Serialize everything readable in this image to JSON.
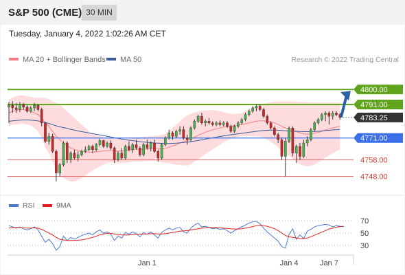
{
  "header": {
    "instrument": "S&P 500 (CME)",
    "timeframe": "30 MIN"
  },
  "timestamp": "Tuesday, January 4, 2022 1:02:26 AM CET",
  "legend": {
    "ma20": "MA 20 + Bollinger Bands",
    "ma50": "MA 50",
    "copyright": "Research © 2022 Trading Central",
    "rsi": "RSI",
    "rsi_ma": "9MA",
    "colors": {
      "ma20": "#f08080",
      "ma50": "#3a5a9a",
      "rsi": "#4a78d0",
      "rsi_ma": "#e02020"
    }
  },
  "chart_data": [
    {
      "type": "candlestick",
      "ylim": [
        4738,
        4805
      ],
      "x_ticks": [
        {
          "label": "Jan 1",
          "index": 38
        },
        {
          "label": "Jan 4",
          "index": 77
        },
        {
          "label": "Jan 7",
          "index": 88
        }
      ],
      "levels": [
        {
          "value": 4800.0,
          "label": "4800.00",
          "style": "resistance",
          "color": "#5fa41c"
        },
        {
          "value": 4791.0,
          "label": "4791.00",
          "style": "resistance",
          "color": "#5fa41c"
        },
        {
          "value": 4783.25,
          "label": "4783.25",
          "style": "last",
          "color": "#333333"
        },
        {
          "value": 4771.0,
          "label": "4771.00",
          "style": "pivot",
          "color": "#3a6fe8"
        },
        {
          "value": 4758.0,
          "label": "4758.00",
          "style": "support",
          "color": "#e06060"
        },
        {
          "value": 4748.0,
          "label": "4748.00",
          "style": "support",
          "color": "#e06060"
        }
      ],
      "arrow": {
        "from": 4783.25,
        "to": 4800.0,
        "color": "#2e5fa8"
      },
      "candles": [
        [
          4789.5,
          4792.5,
          4780,
          4790.5
        ],
        [
          4790.5,
          4793,
          4786,
          4789
        ],
        [
          4789,
          4792,
          4786,
          4788
        ],
        [
          4788,
          4792.5,
          4786.5,
          4791
        ],
        [
          4791,
          4792,
          4788,
          4789.5
        ],
        [
          4789.5,
          4790.5,
          4786,
          4787
        ],
        [
          4787,
          4790,
          4786,
          4789
        ],
        [
          4789,
          4792,
          4787,
          4790.5
        ],
        [
          4790.5,
          4791,
          4787,
          4788
        ],
        [
          4788,
          4789,
          4778,
          4780
        ],
        [
          4780,
          4780.5,
          4768,
          4769
        ],
        [
          4769,
          4774,
          4767,
          4772
        ],
        [
          4772,
          4773.5,
          4762,
          4763
        ],
        [
          4763,
          4764,
          4745,
          4750
        ],
        [
          4750,
          4756,
          4748,
          4755
        ],
        [
          4755,
          4769,
          4754,
          4768
        ],
        [
          4768,
          4769,
          4756,
          4758
        ],
        [
          4758,
          4763,
          4756,
          4762
        ],
        [
          4762,
          4764,
          4758,
          4759
        ],
        [
          4759,
          4763,
          4757,
          4761
        ],
        [
          4761,
          4764,
          4760,
          4763
        ],
        [
          4763,
          4766,
          4762,
          4764
        ],
        [
          4764,
          4767,
          4763,
          4766
        ],
        [
          4766,
          4767,
          4762,
          4764
        ],
        [
          4764,
          4768,
          4763,
          4767
        ],
        [
          4767,
          4770.5,
          4766,
          4769.5
        ],
        [
          4769.5,
          4770,
          4765,
          4766
        ],
        [
          4766,
          4769,
          4765,
          4768
        ],
        [
          4768,
          4769.5,
          4764,
          4765
        ],
        [
          4765,
          4766,
          4756,
          4758
        ],
        [
          4758,
          4763,
          4757,
          4762
        ],
        [
          4762,
          4765,
          4758,
          4759
        ],
        [
          4759,
          4767,
          4758,
          4766
        ],
        [
          4766,
          4769,
          4763,
          4764
        ],
        [
          4764,
          4768,
          4762,
          4767
        ],
        [
          4767,
          4770,
          4764,
          4765
        ],
        [
          4765,
          4766,
          4760,
          4761
        ],
        [
          4761,
          4768,
          4760,
          4767
        ],
        [
          4767,
          4770,
          4764,
          4765
        ],
        [
          4765,
          4769,
          4763,
          4768
        ],
        [
          4768,
          4770,
          4762,
          4763
        ],
        [
          4763,
          4764,
          4757,
          4759
        ],
        [
          4759,
          4768,
          4758,
          4767
        ],
        [
          4767,
          4772,
          4766,
          4771
        ],
        [
          4771,
          4776,
          4770,
          4774
        ],
        [
          4774,
          4775,
          4770,
          4772
        ],
        [
          4772,
          4776,
          4771,
          4775
        ],
        [
          4775,
          4778,
          4773,
          4776
        ],
        [
          4776,
          4778,
          4770,
          4771
        ],
        [
          4771,
          4773,
          4767,
          4770
        ],
        [
          4770,
          4778,
          4769,
          4777
        ],
        [
          4777,
          4782,
          4776,
          4781
        ],
        [
          4781,
          4785,
          4780,
          4784
        ],
        [
          4784,
          4786,
          4779,
          4780
        ],
        [
          4780,
          4782,
          4778,
          4781
        ],
        [
          4781,
          4783,
          4779,
          4780
        ],
        [
          4780,
          4781,
          4778,
          4779
        ],
        [
          4779,
          4781,
          4778,
          4780
        ],
        [
          4780,
          4781.5,
          4778,
          4779
        ],
        [
          4779,
          4781,
          4778,
          4780
        ],
        [
          4780,
          4781,
          4777,
          4778
        ],
        [
          4778,
          4779,
          4774,
          4775
        ],
        [
          4775,
          4779,
          4774,
          4778
        ],
        [
          4778,
          4781,
          4777,
          4780
        ],
        [
          4780,
          4783,
          4779,
          4782
        ],
        [
          4782,
          4786,
          4781,
          4785
        ],
        [
          4785,
          4788,
          4784,
          4787
        ],
        [
          4787,
          4790,
          4786,
          4789
        ],
        [
          4789,
          4791,
          4787,
          4790
        ],
        [
          4790,
          4791,
          4787,
          4788
        ],
        [
          4788,
          4789,
          4783,
          4784
        ],
        [
          4784,
          4785,
          4779,
          4780
        ],
        [
          4780,
          4781,
          4776,
          4777
        ],
        [
          4777,
          4778,
          4772,
          4773
        ],
        [
          4773,
          4774,
          4768,
          4770
        ],
        [
          4770,
          4771,
          4758,
          4760
        ],
        [
          4760,
          4771,
          4748,
          4769
        ],
        [
          4769,
          4778,
          4768,
          4777
        ],
        [
          4777,
          4778,
          4760,
          4762
        ],
        [
          4762,
          4767,
          4756,
          4766
        ],
        [
          4766,
          4768,
          4758,
          4760
        ],
        [
          4760,
          4770,
          4759,
          4768
        ],
        [
          4768,
          4772,
          4766,
          4770
        ],
        [
          4770,
          4777,
          4769,
          4776
        ],
        [
          4776,
          4781,
          4775,
          4780
        ],
        [
          4780,
          4783,
          4779,
          4782
        ],
        [
          4782,
          4786,
          4781,
          4785
        ],
        [
          4785,
          4787,
          4781,
          4786
        ],
        [
          4786,
          4787,
          4779,
          4784
        ],
        [
          4784,
          4787,
          4782,
          4786
        ],
        [
          4786,
          4787,
          4784,
          4785
        ],
        [
          4785,
          4786,
          4782,
          4783.25
        ]
      ],
      "ma20": [
        4786,
        4787,
        4787.5,
        4788,
        4788,
        4787.5,
        4787,
        4786,
        4785,
        4783,
        4780,
        4778,
        4775,
        4772,
        4770,
        4768,
        4766.5,
        4765,
        4764,
        4763.5,
        4763,
        4762.8,
        4762.6,
        4762.5,
        4762.7,
        4763,
        4763.3,
        4763.5,
        4763.6,
        4763.4,
        4763.2,
        4763.3,
        4763.5,
        4763.7,
        4764,
        4764.2,
        4764.2,
        4764.3,
        4764.5,
        4764.7,
        4764.8,
        4764.6,
        4764.5,
        4764.8,
        4765.5,
        4766.2,
        4767,
        4768,
        4768.8,
        4769.5,
        4770.4,
        4771.5,
        4772.6,
        4773.5,
        4774.4,
        4775.2,
        4775.9,
        4776.5,
        4777,
        4777.5,
        4777.8,
        4778,
        4778.3,
        4778.6,
        4779,
        4779.5,
        4780,
        4780.5,
        4781,
        4781.3,
        4781.3,
        4781,
        4780.6,
        4780,
        4779.2,
        4778,
        4777,
        4776.5,
        4775.5,
        4774.8,
        4774,
        4773.5,
        4773.3,
        4773.4,
        4773.8,
        4774.3,
        4775,
        4775.8,
        4776.4,
        4777,
        4777.6,
        4778.1
      ],
      "ma50": [
        4781,
        4781.3,
        4781.5,
        4781.7,
        4781.8,
        4781.8,
        4781.7,
        4781.5,
        4781.2,
        4780.8,
        4780.3,
        4779.7,
        4779,
        4778.3,
        4777.7,
        4777.2,
        4776.7,
        4776.2,
        4775.7,
        4775.2,
        4774.8,
        4774.4,
        4774,
        4773.6,
        4773.2,
        4772.8,
        4772.4,
        4772,
        4771.6,
        4771.2,
        4770.8,
        4770.4,
        4770,
        4769.7,
        4769.4,
        4769.1,
        4768.8,
        4768.6,
        4768.4,
        4768.2,
        4768,
        4767.9,
        4767.8,
        4767.7,
        4767.7,
        4767.8,
        4767.9,
        4768.1,
        4768.3,
        4768.5,
        4768.8,
        4769.1,
        4769.5,
        4769.9,
        4770.3,
        4770.7,
        4771.1,
        4771.5,
        4771.9,
        4772.3,
        4772.6,
        4772.9,
        4773.2,
        4773.5,
        4773.8,
        4774.1,
        4774.4,
        4774.7,
        4775,
        4775.3,
        4775.5,
        4775.6,
        4775.7,
        4775.7,
        4775.6,
        4775.5,
        4775.3,
        4775.2,
        4775.1,
        4775,
        4774.9,
        4774.8,
        4774.8,
        4774.8,
        4774.9,
        4775,
        4775.2,
        4775.4,
        4775.6,
        4775.8,
        4776,
        4776.2
      ],
      "bb_upper": [
        4794,
        4795,
        4796,
        4796.5,
        4796.5,
        4796,
        4795.5,
        4795,
        4795,
        4795,
        4795,
        4794,
        4793,
        4792,
        4791,
        4789,
        4787,
        4785,
        4783,
        4781,
        4779,
        4777,
        4775,
        4773.5,
        4772.5,
        4772,
        4771.5,
        4771,
        4770.8,
        4770.6,
        4770.5,
        4770.5,
        4770.8,
        4771,
        4771.2,
        4771.4,
        4771.5,
        4771.6,
        4771.8,
        4772,
        4772.2,
        4772.4,
        4772.8,
        4773.5,
        4775,
        4777,
        4779,
        4781,
        4783,
        4784.5,
        4785.5,
        4786.2,
        4786.8,
        4787.2,
        4787.5,
        4787.6,
        4787.6,
        4787.4,
        4787,
        4786.5,
        4786,
        4785.5,
        4785.3,
        4785.5,
        4786,
        4787,
        4788,
        4789,
        4790,
        4790.8,
        4791.5,
        4792,
        4792.5,
        4792.8,
        4792.9,
        4793,
        4793,
        4793,
        4792.9,
        4792.8,
        4792.7,
        4792.6,
        4792.5,
        4792.4,
        4792.3,
        4792.2,
        4792.2,
        4792.2,
        4792.2,
        4792.2,
        4792.2,
        4792.2
      ],
      "bb_lower": [
        4778,
        4779,
        4779,
        4779.5,
        4779.5,
        4779,
        4778.5,
        4777,
        4775,
        4771,
        4765,
        4762,
        4757,
        4752,
        4749,
        4747,
        4746,
        4745,
        4745,
        4746,
        4747,
        4748.6,
        4750.2,
        4751.5,
        4752.9,
        4754,
        4755.1,
        4756,
        4756.4,
        4756.2,
        4755.9,
        4756.1,
        4756.2,
        4756.4,
        4756.8,
        4757,
        4756.9,
        4757,
        4757.2,
        4757.4,
        4757.4,
        4756.8,
        4756.2,
        4756.1,
        4756,
        4755.4,
        4755,
        4755,
        4754.6,
        4754.5,
        4755.3,
        4756.8,
        4758.4,
        4759.8,
        4761.3,
        4762.8,
        4764.2,
        4765.6,
        4767,
        4768.5,
        4769.6,
        4770.5,
        4771.3,
        4771.7,
        4772,
        4772,
        4772,
        4772,
        4772,
        4771.8,
        4771.1,
        4770,
        4768.7,
        4767.2,
        4765.5,
        4763,
        4761,
        4760.5,
        4758.5,
        4757,
        4755.3,
        4754.4,
        4754.1,
        4754.3,
        4755.2,
        4756.3,
        4757.8,
        4759.4,
        4760.6,
        4761.8,
        4763,
        4764
      ]
    },
    {
      "type": "line",
      "ylim": [
        20,
        80
      ],
      "yticks": [
        70,
        50,
        30
      ],
      "series": [
        {
          "name": "RSI",
          "values": [
            62,
            60,
            58,
            60,
            57,
            55,
            57,
            60,
            55,
            45,
            35,
            40,
            33,
            22,
            28,
            45,
            38,
            43,
            40,
            43,
            46,
            48,
            50,
            47,
            52,
            55,
            50,
            52,
            48,
            38,
            45,
            42,
            51,
            48,
            52,
            49,
            44,
            51,
            48,
            52,
            47,
            42,
            51,
            55,
            58,
            55,
            58,
            59,
            52,
            50,
            58,
            63,
            66,
            60,
            61,
            59,
            57,
            58,
            56,
            57,
            54,
            50,
            54,
            57,
            60,
            63,
            66,
            68,
            69,
            65,
            58,
            52,
            47,
            42,
            37,
            28,
            26,
            48,
            57,
            40,
            47,
            41,
            53,
            56,
            60,
            62,
            63,
            64,
            63,
            60,
            62,
            61,
            60
          ]
        },
        {
          "name": "9MA",
          "values": [
            58,
            58.5,
            59,
            59,
            58.5,
            58,
            58,
            58.5,
            58,
            56,
            53,
            50,
            47,
            43,
            40,
            39,
            38,
            38,
            38,
            38.5,
            39,
            40,
            41.5,
            43,
            45,
            47,
            48.5,
            49.5,
            49.5,
            48.5,
            47.5,
            47,
            47,
            47,
            47.5,
            48,
            48,
            48.5,
            48.5,
            49,
            49,
            48.5,
            48.5,
            49,
            50,
            51,
            52,
            53,
            53.5,
            54,
            55,
            56,
            57,
            58,
            58.5,
            59,
            59,
            59,
            58.5,
            58,
            57.5,
            57,
            56.5,
            56.5,
            57,
            58,
            59,
            60.5,
            62,
            62.5,
            62,
            61,
            59,
            57,
            54,
            50,
            46,
            44,
            43,
            42,
            41,
            41,
            42,
            44,
            46.5,
            49,
            51.5,
            54,
            56.5,
            58,
            59.5,
            60.5,
            61
          ]
        }
      ]
    }
  ]
}
